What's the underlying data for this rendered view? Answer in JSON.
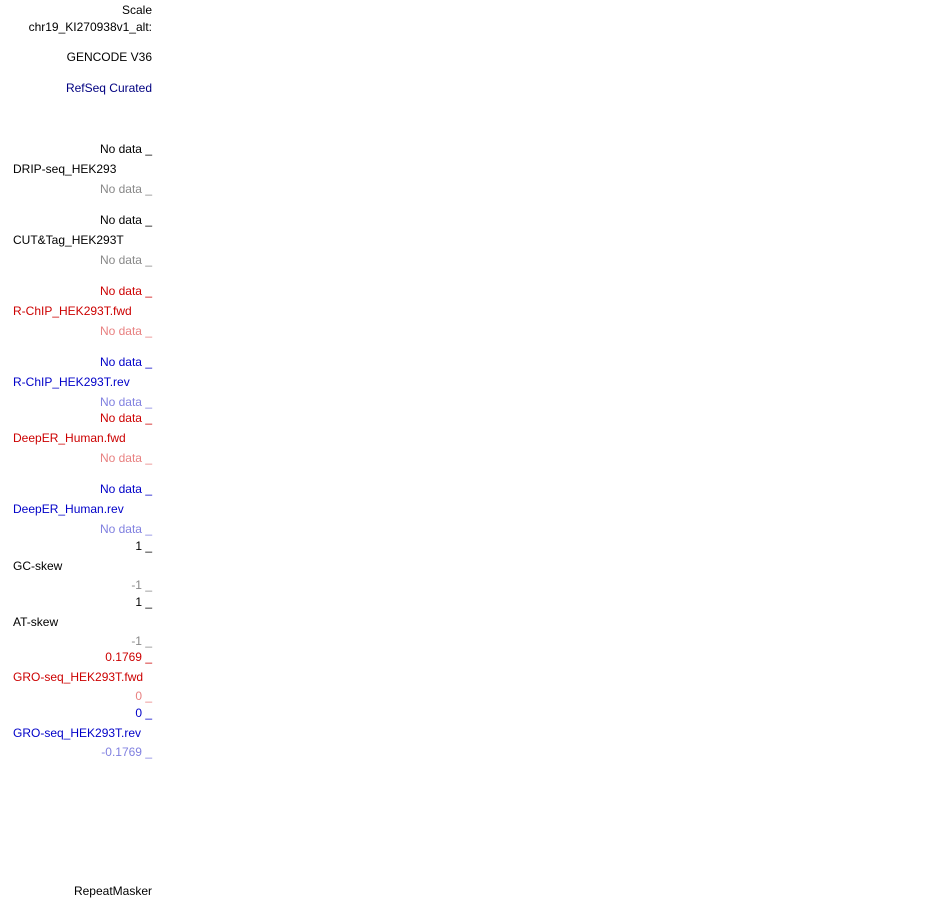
{
  "header": {
    "scale": "Scale",
    "position": "chr19_KI270938v1_alt:"
  },
  "gene_tracks": [
    "GENCODE V36",
    "RefSeq Curated"
  ],
  "tracks": [
    {
      "name": "DRIP-seq_HEK293",
      "top": "No data _",
      "bottom": "No data _"
    },
    {
      "name": "CUT&Tag_HEK293T",
      "top": "No data _",
      "bottom": "No data _"
    },
    {
      "name": "R-ChIP_HEK293T.fwd",
      "top": "No data _",
      "bottom": "No data _"
    },
    {
      "name": "R-ChIP_HEK293T.rev",
      "top": "No data _",
      "bottom": "No data _"
    },
    {
      "name": "DeepER_Human.fwd",
      "top": "No data _",
      "bottom": "No data _"
    },
    {
      "name": "DeepER_Human.rev",
      "top": "No data _",
      "bottom": "No data _"
    },
    {
      "name": "GC-skew",
      "top": "1 _",
      "bottom": "-1 _"
    },
    {
      "name": "AT-skew",
      "top": "1 _",
      "bottom": "-1 _"
    },
    {
      "name": "GRO-seq_HEK293T.fwd",
      "top": "0.1769 _",
      "bottom": "0 _"
    },
    {
      "name": "GRO-seq_HEK293T.rev",
      "top": "0 _",
      "bottom": "-0.1769 _"
    }
  ],
  "footer_track": "RepeatMasker"
}
